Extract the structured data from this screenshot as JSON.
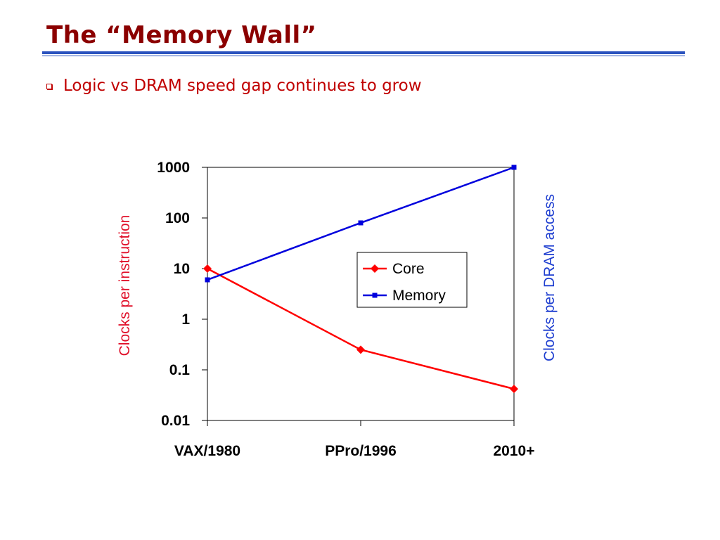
{
  "slide": {
    "title": "The “Memory Wall”",
    "bullet": "Logic vs DRAM speed gap continues to grow"
  },
  "colors": {
    "title": "#8b0000",
    "rule": "#2a52be",
    "bullet": "#c00000",
    "core": "#ff0000",
    "memory": "#0000dd",
    "left_axis_title": "#e0102a",
    "right_axis_title": "#1f3fd0"
  },
  "chart_data": {
    "type": "line",
    "categories": [
      "VAX/1980",
      "PPro/1996",
      "2010+"
    ],
    "y_scale": "log",
    "ylim": [
      0.01,
      1000
    ],
    "y_ticks": [
      "1000",
      "100",
      "10",
      "1",
      "0.1",
      "0.01"
    ],
    "ylabel_left": "Clocks per instruction",
    "ylabel_right": "Clocks per DRAM access",
    "grid": false,
    "legend_position": "center-right",
    "series": [
      {
        "name": "Core",
        "values": [
          10,
          0.25,
          0.042
        ],
        "marker": "diamond",
        "color": "#ff0000"
      },
      {
        "name": "Memory",
        "values": [
          6,
          80,
          1000
        ],
        "marker": "square",
        "color": "#0000dd"
      }
    ]
  }
}
